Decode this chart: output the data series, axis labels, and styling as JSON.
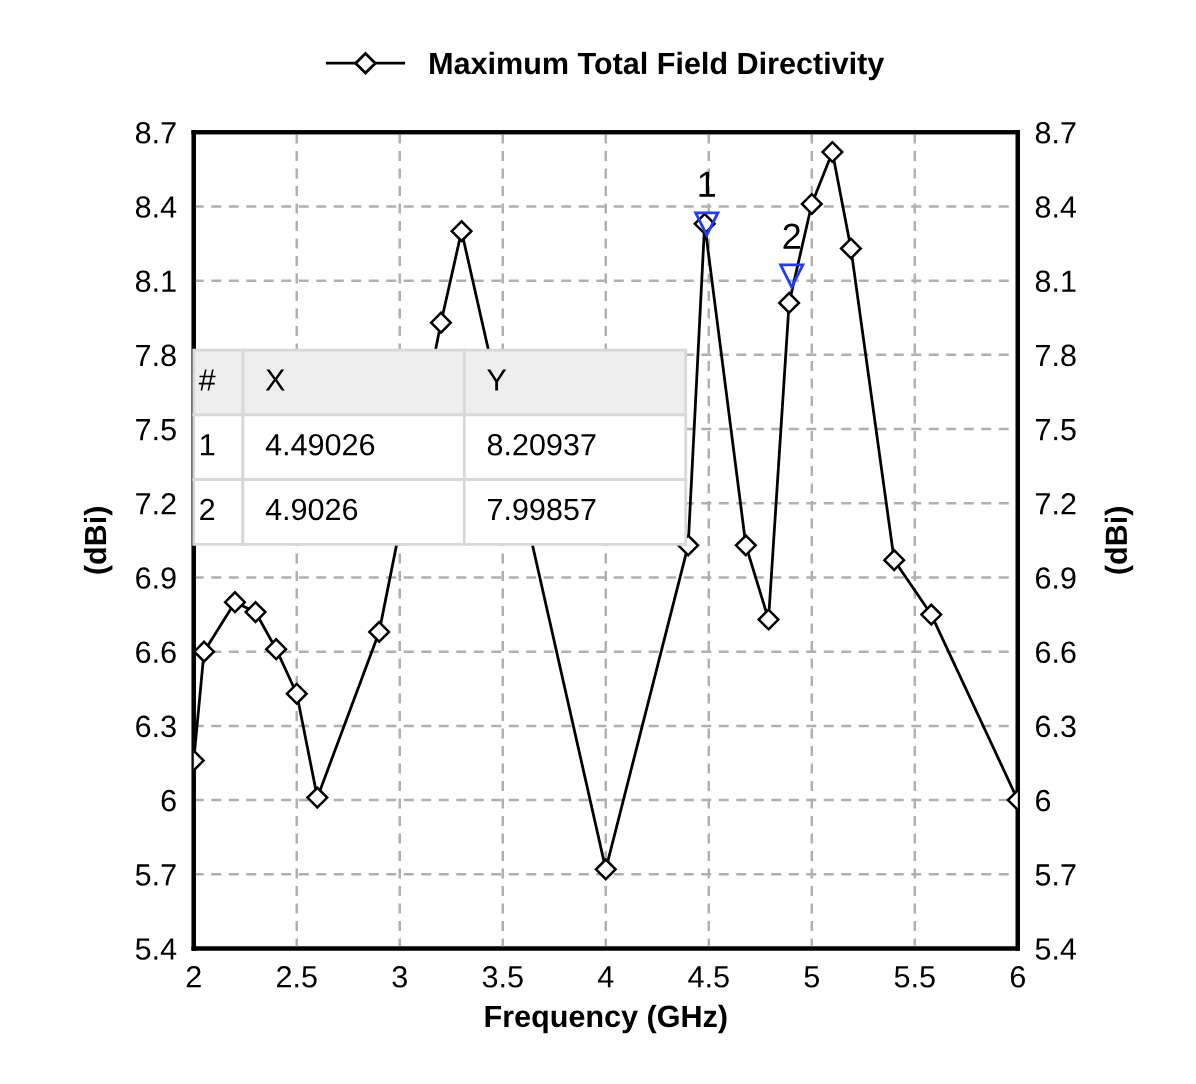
{
  "chart_data": {
    "type": "line",
    "xlabel": "Frequency (GHz)",
    "ylabel": "(dBi)",
    "y2label": "(dBi)",
    "x": [
      2.0,
      2.05,
      2.2,
      2.3,
      2.4,
      2.5,
      2.6,
      2.9,
      3.2,
      3.3,
      4.0,
      4.4,
      4.48,
      4.68,
      4.79,
      4.89,
      5.0,
      5.1,
      5.19,
      5.4,
      5.58,
      6.0
    ],
    "series": [
      {
        "name": "Maximum Total Field Directivity",
        "color": "#000000",
        "values": [
          6.16,
          6.6,
          6.8,
          6.76,
          6.61,
          6.43,
          6.01,
          6.68,
          7.93,
          8.3,
          5.72,
          7.03,
          8.33,
          7.03,
          6.73,
          8.01,
          8.41,
          8.62,
          8.23,
          6.97,
          6.75,
          6.0
        ]
      }
    ],
    "xlim": [
      2,
      6
    ],
    "xticks": [
      2,
      2.5,
      3,
      3.5,
      4,
      4.5,
      5,
      5.5,
      6
    ],
    "ylim": [
      5.4,
      8.7
    ],
    "yticks": [
      5.4,
      5.7,
      6,
      6.3,
      6.6,
      6.9,
      7.2,
      7.5,
      7.8,
      8.1,
      8.4,
      8.7
    ],
    "y2lim": [
      5.4,
      8.7
    ],
    "y2ticks": [
      5.4,
      5.7,
      6,
      6.3,
      6.6,
      6.9,
      7.2,
      7.5,
      7.8,
      8.1,
      8.4,
      8.7
    ],
    "grid": true,
    "legend": "top",
    "marker": "diamond",
    "line_style": "solid",
    "annotations": [
      {
        "text": "1",
        "x": 4.49026,
        "y": 8.20937
      },
      {
        "text": "2",
        "x": 4.9026,
        "y": 7.99857
      },
      "#",
      "X",
      "Y",
      "1",
      "4.49026",
      "8.20937",
      "2",
      "4.9026",
      "7.99857"
    ]
  }
}
